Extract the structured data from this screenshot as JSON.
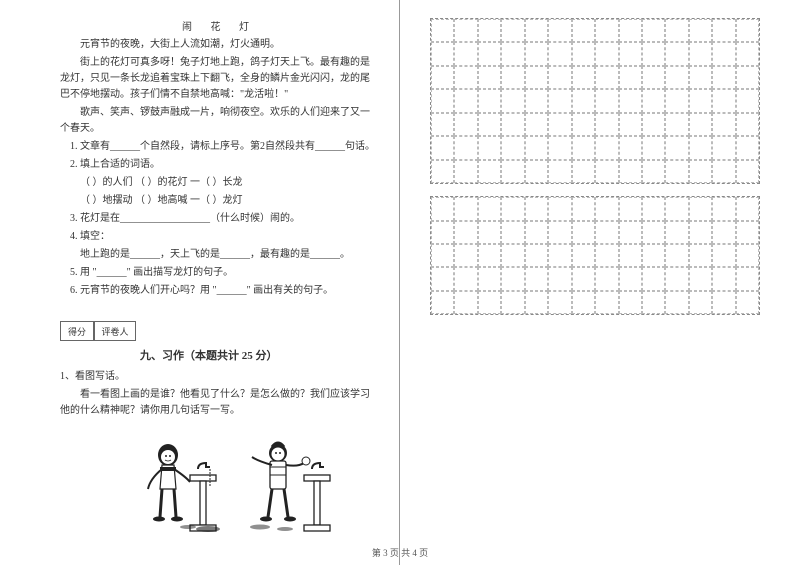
{
  "passage": {
    "title": "闹 花 灯",
    "p1": "元宵节的夜晚，大街上人流如潮，灯火通明。",
    "p2": "街上的花灯可真多呀！兔子灯地上跑，鸽子灯天上飞。最有趣的是龙灯，只见一条长龙追着宝珠上下翻飞，全身的鳞片金光闪闪，龙的尾巴不停地摆动。孩子们情不自禁地高喊：\"龙活啦！\"",
    "p3": "歌声、笑声、锣鼓声融成一片，响彻夜空。欢乐的人们迎来了又一个春天。"
  },
  "questions": {
    "q1": "1. 文章有______个自然段，请标上序号。第2自然段共有______句话。",
    "q2": "2. 填上合适的词语。",
    "q2a": "（        ）的人们      （        ）的花灯        一（        ）长龙",
    "q2b": "（        ）地摆动      （        ）地高喊        一（        ）龙灯",
    "q3": "3. 花灯是在__________________（什么时候）闹的。",
    "q4": "4. 填空：",
    "q4a": "地上跑的是______，天上飞的是______，最有趣的是______。",
    "q5": "5. 用 \"______\" 画出描写龙灯的句子。",
    "q6": "6. 元宵节的夜晚人们开心吗？用 \"______\" 画出有关的句子。"
  },
  "scorebox": {
    "left": "得分",
    "right": "评卷人"
  },
  "section9": {
    "title": "九、习作（本题共计 25 分）",
    "q1": "1、看图写话。",
    "prompt": "看一看图上画的是谁？他看见了什么？是怎么做的？我们应该学习他的什么精神呢？请你用几句话写一写。"
  },
  "grid": {
    "cols": 14,
    "rows1": 7,
    "rows2": 5,
    "border_color": "#888888",
    "cell_border_color": "#bbbbbb"
  },
  "footer": "第 3 页 共 4 页",
  "colors": {
    "text": "#333333",
    "bg": "#ffffff",
    "divider": "#999999"
  }
}
